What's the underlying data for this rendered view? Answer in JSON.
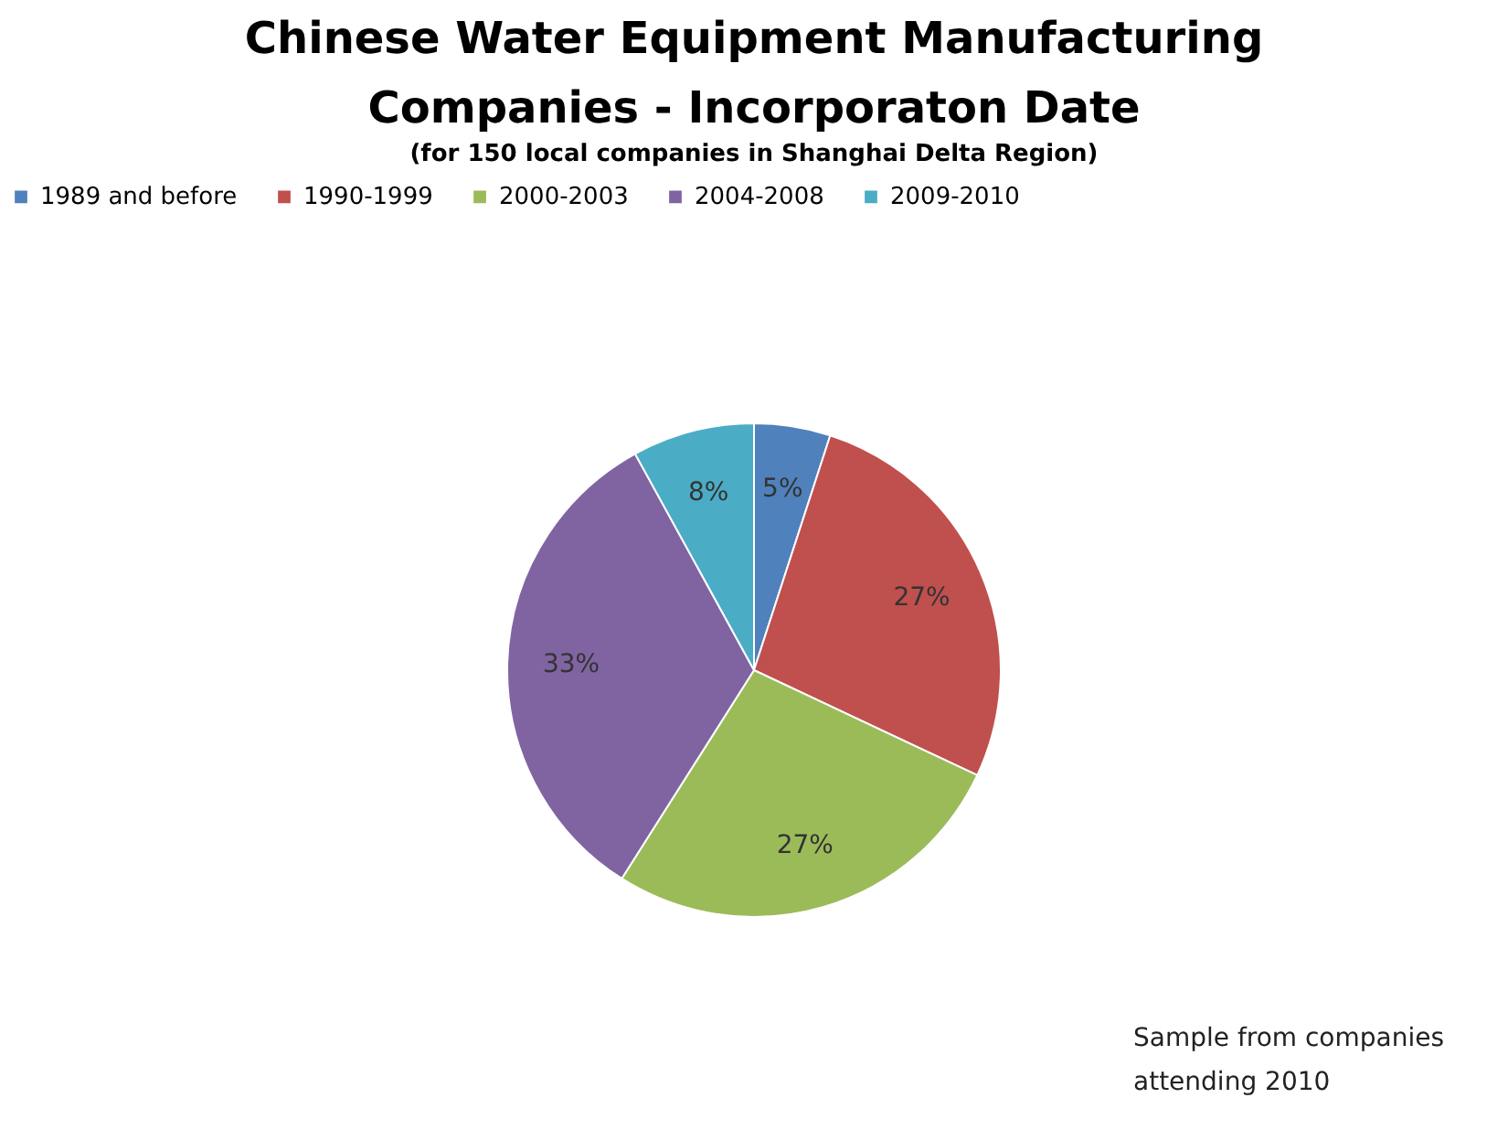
{
  "chart_data": {
    "type": "pie",
    "title": "Chinese Water Equipment Manufacturing Companies - Incorporaton Date",
    "subtitle": "(for 150 local companies in Shanghai Delta Region)",
    "categories": [
      "1989 and before",
      "1990-1999",
      "2000-2003",
      "2004-2008",
      "2009-2010"
    ],
    "values": [
      5,
      27,
      27,
      33,
      8
    ],
    "colors": [
      "#4f81bd",
      "#c0504d",
      "#9bbb59",
      "#8064a2",
      "#4bacc6"
    ],
    "value_labels": [
      "5%",
      "27%",
      "27%",
      "33%",
      "8%"
    ],
    "legend": "top",
    "annotations": [
      "Sample from companies attending 2010"
    ]
  }
}
